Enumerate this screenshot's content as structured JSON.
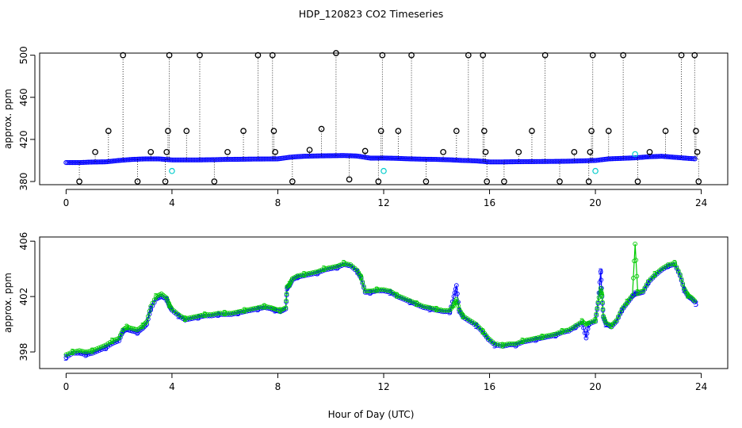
{
  "chart_data": {
    "title": "HDP_120823  CO2 Timeseries",
    "xlabel": "Hour of Day (UTC)",
    "x_ticks": [
      "0",
      "4",
      "8",
      "12",
      "16",
      "20",
      "24"
    ],
    "colors": {
      "black": "#000000",
      "blue": "#0000ff",
      "green": "#00cc00",
      "cyan": "#00cccc"
    },
    "panels": [
      {
        "type": "scatter",
        "ylabel": "approx. ppm",
        "xlim": [
          -1,
          25
        ],
        "ylim": [
          377,
          502
        ],
        "y_ticks": [
          "380",
          "420",
          "460",
          "500"
        ],
        "baseline_series": {
          "name": "blue",
          "x": [
            0.0,
            0.5,
            1.0,
            1.5,
            2.0,
            2.5,
            3.0,
            3.5,
            4.0,
            4.5,
            5.0,
            5.5,
            6.0,
            6.5,
            7.0,
            7.5,
            8.0,
            8.5,
            9.0,
            9.5,
            10.0,
            10.5,
            11.0,
            11.5,
            12.0,
            12.5,
            13.0,
            13.5,
            14.0,
            14.5,
            15.0,
            15.5,
            16.0,
            16.5,
            17.0,
            17.5,
            18.0,
            18.5,
            19.0,
            19.5,
            20.0,
            20.5,
            21.0,
            21.5,
            22.0,
            22.5,
            23.0,
            23.5,
            23.8
          ],
          "y": [
            398,
            398,
            398.5,
            398.7,
            400,
            401,
            401.5,
            401.5,
            400.5,
            400.5,
            400.5,
            400.7,
            401,
            401.1,
            401.3,
            401.4,
            401.5,
            403.2,
            404,
            404.3,
            404.5,
            404.7,
            404.2,
            402.2,
            402.3,
            402,
            401.5,
            401.2,
            401,
            400.6,
            400,
            399.6,
            398.6,
            398.6,
            398.8,
            398.9,
            399,
            399.1,
            399.3,
            399.6,
            400,
            401.5,
            402,
            402.5,
            403.5,
            404,
            403,
            402,
            401.5
          ]
        },
        "outliers": {
          "name": "black",
          "x": [
            0.5,
            1.1,
            1.6,
            2.15,
            2.7,
            3.2,
            3.75,
            3.8,
            3.85,
            3.9,
            4.55,
            5.05,
            5.6,
            6.1,
            6.7,
            7.25,
            7.8,
            7.85,
            7.9,
            8.55,
            9.2,
            9.65,
            10.2,
            10.7,
            11.3,
            11.8,
            11.9,
            11.95,
            12.55,
            13.05,
            13.6,
            14.25,
            14.75,
            15.2,
            15.75,
            15.8,
            15.85,
            15.9,
            16.55,
            17.1,
            17.6,
            18.1,
            18.65,
            19.2,
            19.75,
            19.8,
            19.85,
            19.9,
            20.5,
            21.05,
            21.6,
            22.05,
            22.65,
            23.25,
            23.75,
            23.8,
            23.85,
            23.9
          ],
          "y": [
            380,
            408,
            428,
            500,
            380,
            408,
            380,
            408,
            428,
            500,
            428,
            500,
            380,
            408,
            428,
            500,
            500,
            428,
            408,
            380,
            410,
            430,
            502,
            382,
            409,
            380,
            428,
            500,
            428,
            500,
            380,
            408,
            428,
            500,
            500,
            428,
            408,
            380,
            380,
            408,
            428,
            500,
            380,
            408,
            380,
            408,
            428,
            500,
            428,
            500,
            380,
            408,
            428,
            500,
            500,
            428,
            408,
            380
          ]
        },
        "cyan_points": {
          "name": "cyan",
          "x": [
            4.0,
            12.0,
            20.0,
            21.5
          ],
          "y": [
            390,
            390,
            390,
            406
          ]
        }
      },
      {
        "type": "line",
        "ylabel": "approx. ppm",
        "xlim": [
          -1,
          25
        ],
        "ylim": [
          396.8,
          406.3
        ],
        "y_ticks": [
          "398",
          "402",
          "406"
        ],
        "series": [
          {
            "name": "3",
            "x": [
              0.0,
              0.25,
              0.5,
              0.75,
              1.0,
              1.25,
              1.5,
              1.75,
              2.0,
              2.15,
              2.3,
              2.5,
              2.7,
              2.9,
              3.05,
              3.2,
              3.4,
              3.6,
              3.8,
              3.9,
              4.0,
              4.25,
              4.5,
              4.75,
              5.0,
              5.25,
              5.5,
              5.75,
              6.0,
              6.25,
              6.5,
              6.75,
              7.0,
              7.25,
              7.5,
              7.75,
              7.9,
              8.1,
              8.3,
              8.35,
              8.45,
              8.55,
              8.75,
              9.0,
              9.25,
              9.5,
              9.75,
              10.0,
              10.25,
              10.5,
              10.75,
              11.0,
              11.15,
              11.3,
              11.5,
              11.75,
              12.0,
              12.25,
              12.5,
              12.75,
              13.0,
              13.25,
              13.5,
              13.75,
              14.0,
              14.25,
              14.5,
              14.65,
              14.75,
              14.85,
              15.0,
              15.25,
              15.5,
              15.75,
              15.95,
              16.2,
              16.5,
              16.75,
              17.0,
              17.25,
              17.5,
              17.75,
              18.0,
              18.25,
              18.5,
              18.75,
              19.0,
              19.25,
              19.5,
              19.65,
              19.75,
              20.0,
              20.1,
              20.2,
              20.25,
              20.3,
              20.4,
              20.6,
              20.8,
              21.0,
              21.2,
              21.4,
              21.5,
              21.6,
              21.8,
              22.0,
              22.25,
              22.5,
              22.75,
              23.0,
              23.2,
              23.35,
              23.5,
              23.65,
              23.8
            ],
            "y": [
              397.6,
              397.9,
              397.9,
              397.8,
              397.9,
              398.1,
              398.3,
              398.6,
              398.8,
              399.5,
              399.6,
              399.5,
              399.4,
              399.7,
              400.0,
              401.1,
              401.8,
              402.0,
              401.8,
              401.3,
              401.0,
              400.6,
              400.3,
              400.4,
              400.5,
              400.6,
              400.6,
              400.7,
              400.7,
              400.7,
              400.8,
              400.9,
              401.0,
              401.1,
              401.2,
              401.1,
              401.0,
              400.9,
              401.1,
              402.6,
              402.8,
              403.2,
              403.4,
              403.5,
              403.6,
              403.7,
              403.9,
              404.0,
              404.1,
              404.3,
              404.2,
              403.8,
              403.3,
              402.3,
              402.3,
              402.4,
              402.4,
              402.3,
              402.0,
              401.8,
              401.6,
              401.4,
              401.2,
              401.1,
              401.0,
              400.9,
              400.9,
              402.0,
              402.8,
              401.0,
              400.5,
              400.2,
              399.9,
              399.4,
              398.9,
              398.5,
              398.4,
              398.5,
              398.5,
              398.7,
              398.8,
              398.9,
              399.0,
              399.1,
              399.2,
              399.4,
              399.5,
              399.8,
              400.1,
              399.0,
              400.0,
              400.2,
              401.5,
              403.8,
              402.0,
              400.5,
              400.0,
              399.8,
              400.2,
              401.0,
              401.5,
              402.0,
              402.2,
              402.2,
              402.3,
              403.0,
              403.5,
              403.9,
              404.2,
              404.3,
              403.5,
              402.5,
              402.0,
              401.8,
              401.5
            ]
          },
          {
            "name": "2",
            "x": [
              0.0,
              0.25,
              0.5,
              0.75,
              1.0,
              1.25,
              1.5,
              1.75,
              2.0,
              2.15,
              2.3,
              2.5,
              2.7,
              2.9,
              3.05,
              3.2,
              3.4,
              3.6,
              3.8,
              3.9,
              4.0,
              4.25,
              4.5,
              4.75,
              5.0,
              5.25,
              5.5,
              5.75,
              6.0,
              6.25,
              6.5,
              6.75,
              7.0,
              7.25,
              7.5,
              7.75,
              7.9,
              8.1,
              8.3,
              8.35,
              8.45,
              8.55,
              8.75,
              9.0,
              9.25,
              9.5,
              9.75,
              10.0,
              10.25,
              10.5,
              10.75,
              11.0,
              11.15,
              11.3,
              11.5,
              11.75,
              12.0,
              12.25,
              12.5,
              12.75,
              13.0,
              13.25,
              13.5,
              13.75,
              14.0,
              14.25,
              14.5,
              14.65,
              14.75,
              14.85,
              15.0,
              15.25,
              15.5,
              15.75,
              15.95,
              16.2,
              16.5,
              16.75,
              17.0,
              17.25,
              17.5,
              17.75,
              18.0,
              18.25,
              18.5,
              18.75,
              19.0,
              19.25,
              19.5,
              19.65,
              19.75,
              20.0,
              20.1,
              20.2,
              20.25,
              20.3,
              20.4,
              20.6,
              20.8,
              21.0,
              21.2,
              21.4,
              21.5,
              21.6,
              21.8,
              22.0,
              22.25,
              22.5,
              22.75,
              23.0,
              23.2,
              23.35,
              23.5,
              23.65,
              23.8
            ],
            "y": [
              397.8,
              398.0,
              398.1,
              398.0,
              398.1,
              398.3,
              398.5,
              398.8,
              399.0,
              399.6,
              399.8,
              399.7,
              399.6,
              399.9,
              400.2,
              401.3,
              402.0,
              402.2,
              401.9,
              401.4,
              401.1,
              400.7,
              400.4,
              400.5,
              400.6,
              400.7,
              400.7,
              400.8,
              400.8,
              400.8,
              400.9,
              401.0,
              401.1,
              401.2,
              401.3,
              401.2,
              401.1,
              401.0,
              401.2,
              402.7,
              402.9,
              403.3,
              403.5,
              403.6,
              403.7,
              403.8,
              404.0,
              404.1,
              404.2,
              404.4,
              404.3,
              403.9,
              403.4,
              402.4,
              402.4,
              402.5,
              402.5,
              402.4,
              402.1,
              401.9,
              401.7,
              401.5,
              401.3,
              401.2,
              401.1,
              401.0,
              401.0,
              401.4,
              401.8,
              401.1,
              400.6,
              400.3,
              400.0,
              399.5,
              399.0,
              398.6,
              398.5,
              398.6,
              398.6,
              398.8,
              398.9,
              399.0,
              399.1,
              399.2,
              399.3,
              399.5,
              399.6,
              399.9,
              400.2,
              400.0,
              400.1,
              400.3,
              401.6,
              402.6,
              402.1,
              400.6,
              400.1,
              399.9,
              400.3,
              401.1,
              401.6,
              402.1,
              405.8,
              402.3,
              402.4,
              403.1,
              403.6,
              404.0,
              404.3,
              404.4,
              403.6,
              402.6,
              402.1,
              401.9,
              401.6
            ]
          }
        ]
      }
    ]
  }
}
